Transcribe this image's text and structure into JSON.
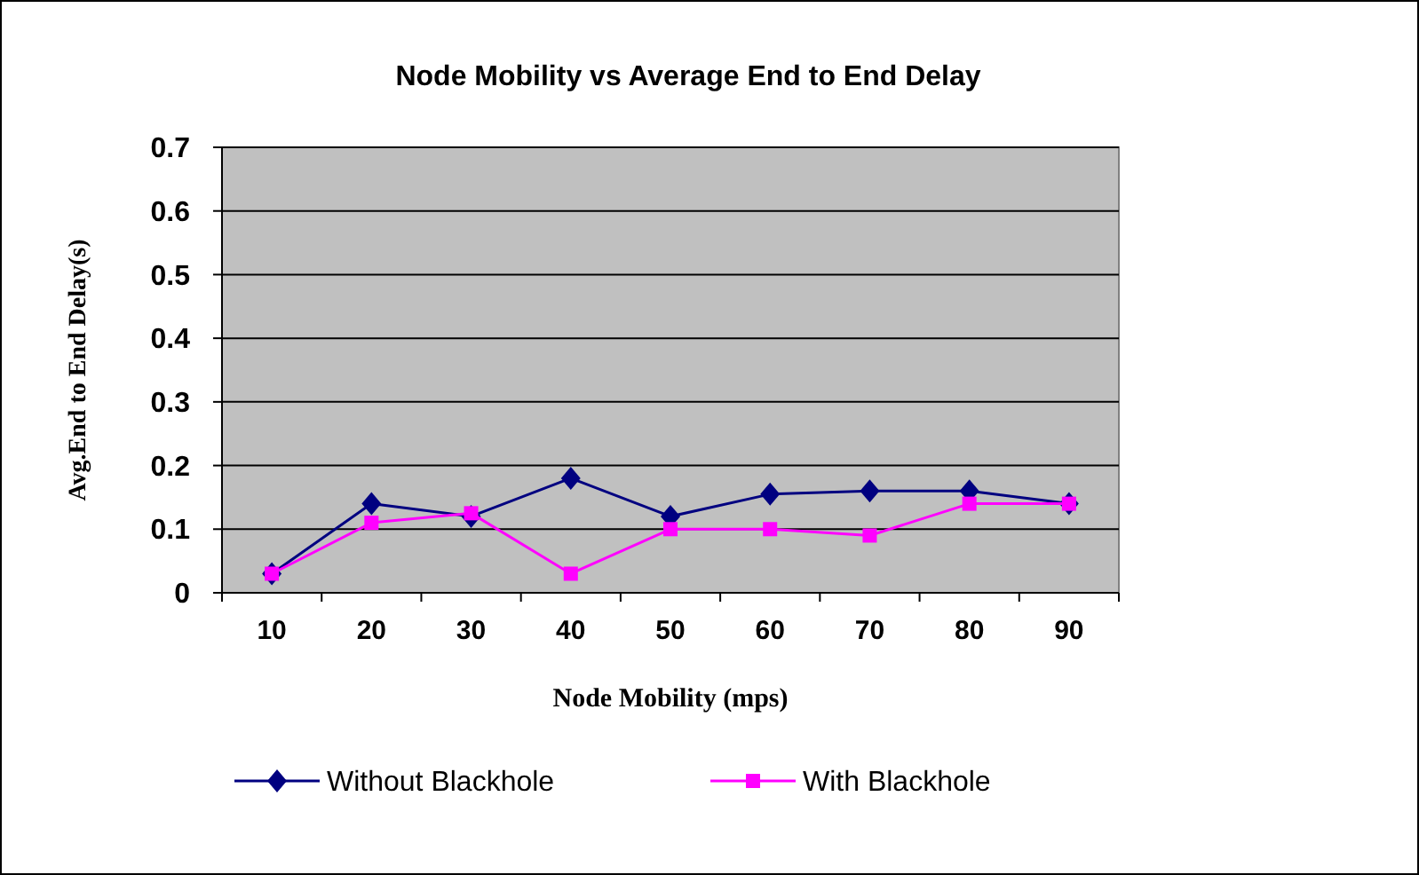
{
  "chart_data": {
    "type": "line",
    "title": "Node Mobility vs Average End to End Delay",
    "xlabel": "Node Mobility (mps)",
    "ylabel": "Avg.End to End Delay(s)",
    "categories": [
      "10",
      "20",
      "30",
      "40",
      "50",
      "60",
      "70",
      "80",
      "90"
    ],
    "series": [
      {
        "name": "Without Blackhole",
        "color": "#000080",
        "marker": "diamond",
        "values": [
          0.03,
          0.14,
          0.12,
          0.18,
          0.12,
          0.155,
          0.16,
          0.16,
          0.14
        ]
      },
      {
        "name": "With Blackhole",
        "color": "#ff00ff",
        "marker": "square",
        "values": [
          0.03,
          0.11,
          0.125,
          0.03,
          0.1,
          0.1,
          0.09,
          0.14,
          0.14
        ]
      }
    ],
    "ylim": [
      0,
      0.7
    ],
    "yticks": [
      0,
      0.1,
      0.2,
      0.3,
      0.4,
      0.5,
      0.6,
      0.7
    ],
    "grid": "y",
    "legend": "bottom"
  }
}
